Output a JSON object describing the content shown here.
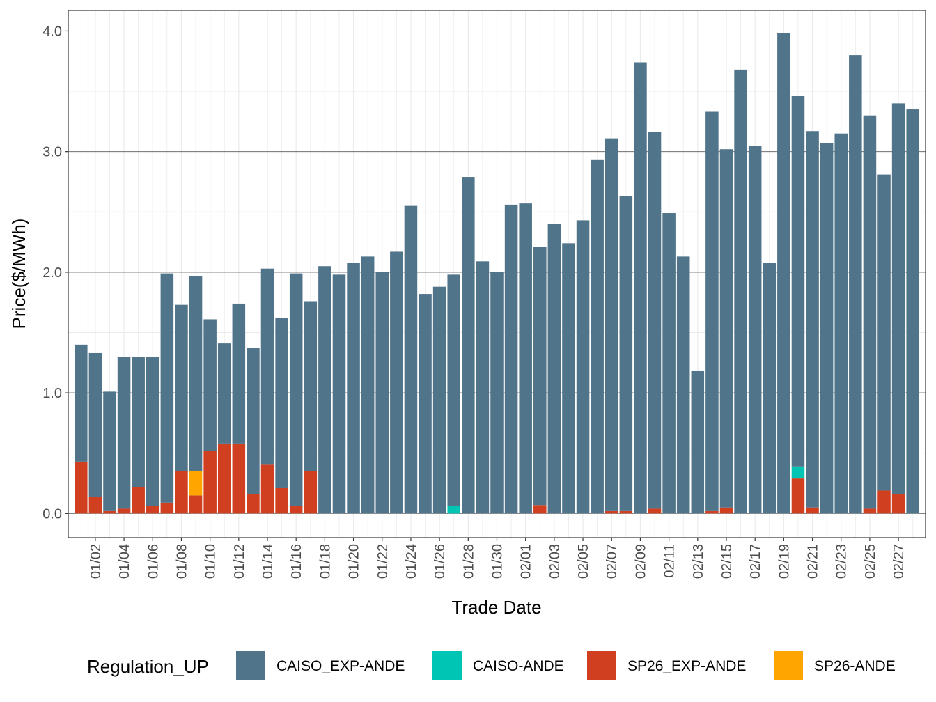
{
  "chart_data": {
    "type": "bar",
    "stacked": true,
    "title": "",
    "xlabel": "Trade Date",
    "ylabel": "Price($/MWh)",
    "ylim": [
      -0.2,
      4.17
    ],
    "yticks": [
      "0.0",
      "1.0",
      "2.0",
      "3.0",
      "4.0"
    ],
    "ytick_values": [
      0,
      1,
      2,
      3,
      4
    ],
    "legend_title": "Regulation_UP",
    "legend_position": "bottom",
    "colors": {
      "CAISO_EXP-ANDE": "#50748A",
      "CAISO-ANDE": "#00C5B4",
      "SP26_EXP-ANDE": "#D04020",
      "SP26-ANDE": "#FFA500"
    },
    "categories": [
      "01/01",
      "01/02",
      "01/03",
      "01/04",
      "01/05",
      "01/06",
      "01/07",
      "01/08",
      "01/09",
      "01/10",
      "01/11",
      "01/12",
      "01/13",
      "01/14",
      "01/15",
      "01/16",
      "01/17",
      "01/18",
      "01/19",
      "01/20",
      "01/21",
      "01/22",
      "01/23",
      "01/24",
      "01/25",
      "01/26",
      "01/27",
      "01/28",
      "01/29",
      "01/30",
      "01/31",
      "02/01",
      "02/02",
      "02/03",
      "02/04",
      "02/05",
      "02/06",
      "02/07",
      "02/08",
      "02/09",
      "02/10",
      "02/11",
      "02/12",
      "02/13",
      "02/14",
      "02/15",
      "02/16",
      "02/17",
      "02/18",
      "02/19",
      "02/20",
      "02/21",
      "02/22",
      "02/23",
      "02/24",
      "02/25",
      "02/26",
      "02/27",
      "02/28"
    ],
    "x_tick_labels": [
      "01/02",
      "01/04",
      "01/06",
      "01/08",
      "01/10",
      "01/12",
      "01/14",
      "01/16",
      "01/18",
      "01/20",
      "01/22",
      "01/24",
      "01/26",
      "01/28",
      "01/30",
      "02/01",
      "02/03",
      "02/05",
      "02/07",
      "02/09",
      "02/11",
      "02/13",
      "02/15",
      "02/17",
      "02/19",
      "02/21",
      "02/23",
      "02/25",
      "02/27"
    ],
    "series": [
      {
        "name": "SP26_EXP-ANDE",
        "values": [
          0.43,
          0.14,
          0.02,
          0.04,
          0.22,
          0.06,
          0.09,
          0.35,
          0.15,
          0.52,
          0.58,
          0.58,
          0.16,
          0.41,
          0.21,
          0.06,
          0.35,
          0,
          0,
          0,
          0,
          0,
          0,
          0,
          0,
          0,
          0,
          0,
          0,
          0,
          0,
          0,
          0.07,
          0,
          0,
          0,
          0,
          0.02,
          0.02,
          0,
          0.04,
          0,
          0,
          0,
          0.02,
          0.05,
          0,
          0,
          0,
          0,
          0.29,
          0.05,
          0,
          0,
          0,
          0.04,
          0.19,
          0.16,
          0
        ]
      },
      {
        "name": "SP26-ANDE",
        "values": [
          0,
          0,
          0,
          0,
          0,
          0,
          0,
          0,
          0.2,
          0,
          0,
          0,
          0,
          0,
          0,
          0,
          0,
          0,
          0,
          0,
          0,
          0,
          0,
          0,
          0,
          0,
          0,
          0,
          0,
          0,
          0,
          0,
          0,
          0,
          0,
          0,
          0,
          0,
          0,
          0,
          0,
          0,
          0,
          0,
          0,
          0,
          0,
          0,
          0,
          0,
          0,
          0,
          0,
          0,
          0,
          0,
          0,
          0,
          0
        ]
      },
      {
        "name": "CAISO-ANDE",
        "values": [
          0,
          0,
          0,
          0,
          0,
          0,
          0,
          0,
          0,
          0,
          0,
          0,
          0,
          0,
          0,
          0,
          0,
          0,
          0,
          0,
          0,
          0,
          0,
          0,
          0,
          0,
          0.06,
          0,
          0,
          0,
          0,
          0,
          0,
          0,
          0,
          0,
          0,
          0,
          0,
          0,
          0,
          0,
          0,
          0,
          0,
          0,
          0,
          0,
          0,
          0,
          0.1,
          0,
          0,
          0,
          0,
          0,
          0,
          0,
          0
        ]
      },
      {
        "name": "CAISO_EXP-ANDE",
        "values": [
          0.97,
          1.19,
          0.99,
          1.26,
          1.08,
          1.24,
          1.9,
          1.38,
          1.62,
          1.09,
          0.83,
          1.16,
          1.21,
          1.62,
          1.41,
          1.93,
          1.41,
          2.05,
          1.98,
          2.08,
          2.13,
          2.0,
          2.17,
          2.55,
          1.82,
          1.88,
          1.92,
          2.79,
          2.09,
          2.0,
          2.56,
          2.57,
          2.14,
          2.4,
          2.24,
          2.43,
          2.93,
          3.09,
          2.61,
          3.74,
          3.12,
          2.49,
          2.13,
          1.18,
          3.31,
          2.97,
          3.68,
          3.05,
          2.08,
          3.98,
          3.07,
          3.12,
          3.07,
          3.15,
          3.8,
          3.26,
          2.62,
          3.24,
          3.35
        ]
      }
    ]
  }
}
